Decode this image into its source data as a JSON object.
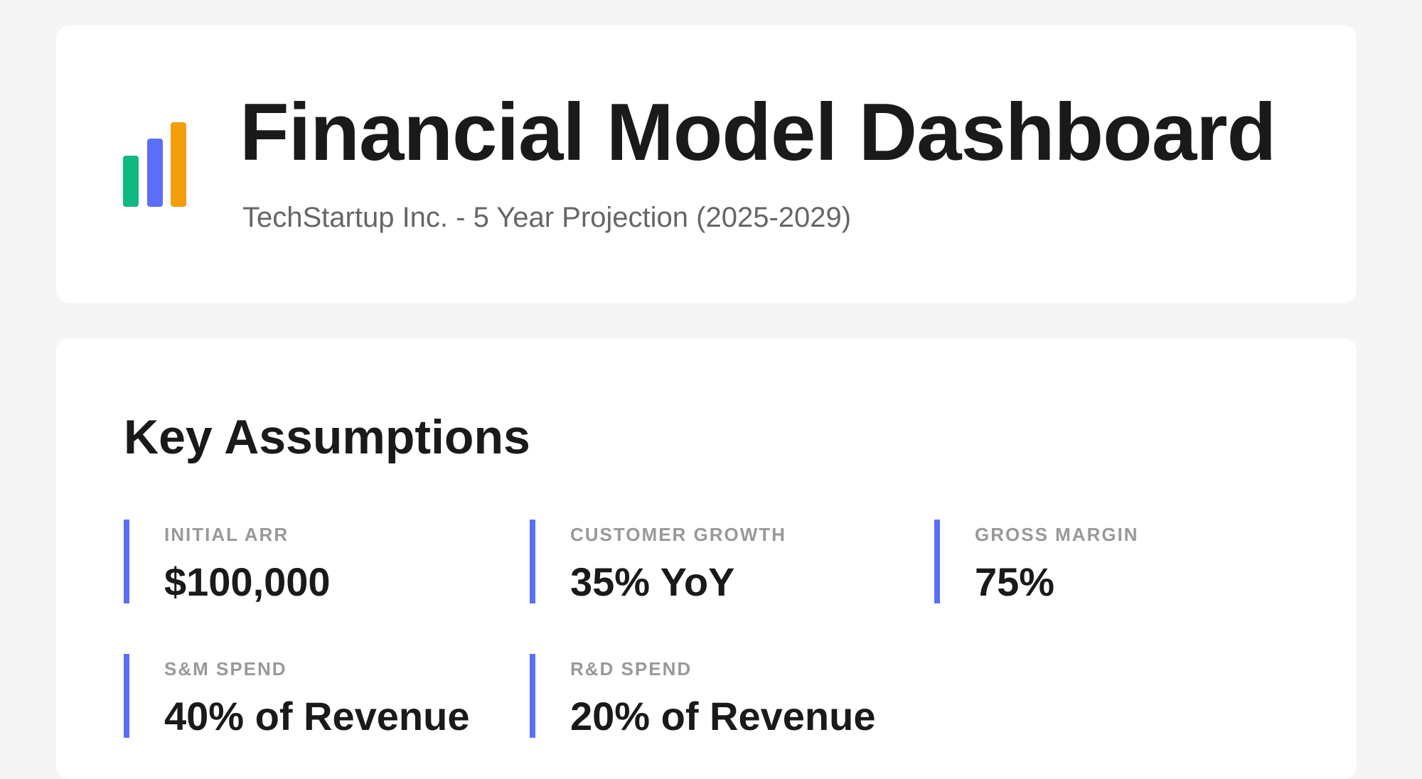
{
  "header": {
    "title": "Financial Model Dashboard",
    "subtitle": "TechStartup Inc. - 5 Year Projection (2025-2029)",
    "logo_colors": [
      "#10b981",
      "#5b6ef8",
      "#f59e0b"
    ]
  },
  "assumptions": {
    "title": "Key Assumptions",
    "accent": "#5b6ef8",
    "items": [
      {
        "label": "INITIAL ARR",
        "value": "$100,000"
      },
      {
        "label": "CUSTOMER GROWTH",
        "value": "35% YoY"
      },
      {
        "label": "GROSS MARGIN",
        "value": "75%"
      },
      {
        "label": "S&M SPEND",
        "value": "40% of Revenue"
      },
      {
        "label": "R&D SPEND",
        "value": "20% of Revenue"
      }
    ]
  }
}
